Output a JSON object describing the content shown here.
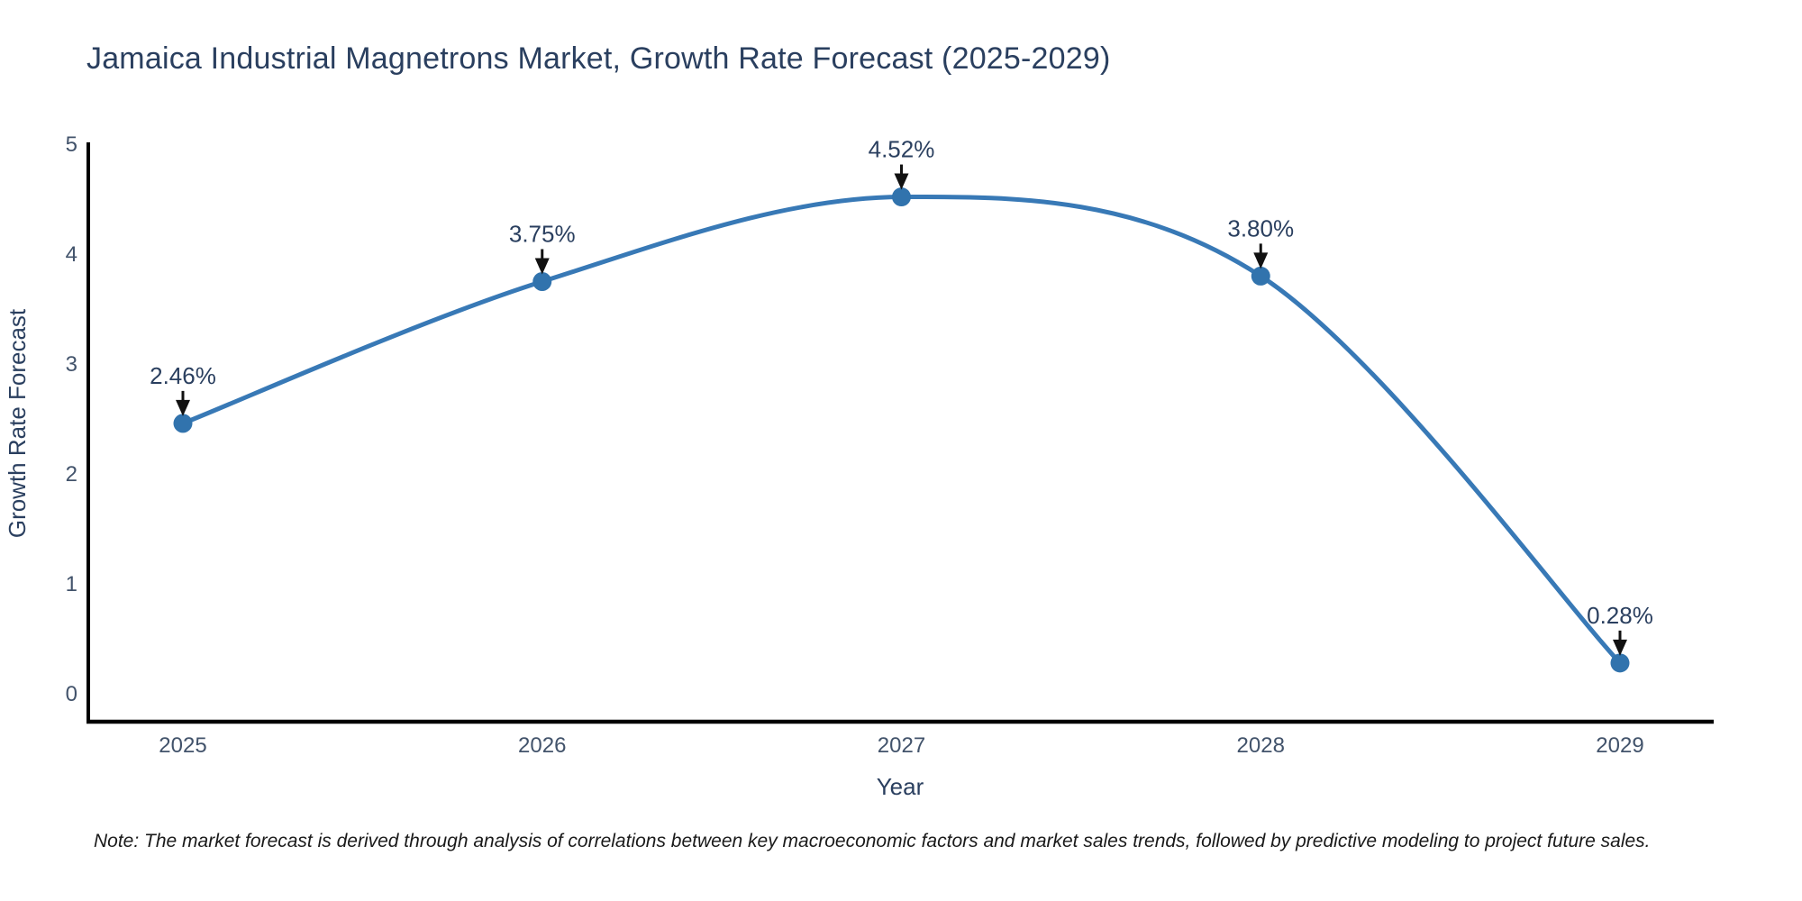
{
  "header": {
    "title": "Jamaica Industrial Magnetrons Market, Growth Rate Forecast (2025-2029)"
  },
  "footnote": {
    "text": "Note: The market forecast is derived through analysis of correlations between key macroeconomic factors and market sales trends, followed by predictive modeling to project future sales."
  },
  "chart_data": {
    "type": "line",
    "title": "Jamaica Industrial Magnetrons Market, Growth Rate Forecast (2025-2029)",
    "x": [
      2025,
      2026,
      2027,
      2028,
      2029
    ],
    "xticks": [
      "2025",
      "2026",
      "2027",
      "2028",
      "2029"
    ],
    "series": [
      {
        "name": "Growth Rate Forecast",
        "values": [
          2.46,
          3.75,
          4.52,
          3.8,
          0.28
        ]
      }
    ],
    "point_labels": [
      "2.46%",
      "3.75%",
      "4.52%",
      "3.80%",
      "0.28%"
    ],
    "xlabel": "Year",
    "ylabel": "Growth Rate Forecast",
    "ylim": [
      0,
      5
    ],
    "yticks": [
      0,
      1,
      2,
      3,
      4,
      5
    ],
    "grid": false,
    "legend_position": "none",
    "line_shape": "spline",
    "marker": "circle",
    "annotation_arrows": true
  },
  "colors": {
    "background": "#ffffff",
    "line": "#3879b6",
    "marker": "#3173ad",
    "axis": "#000000",
    "title_text": "#2a3f5f",
    "tick_text": "#42536b",
    "annotation_text": "#2a3f5f",
    "arrow": "#111111",
    "note_text": "#1a1a1a"
  }
}
